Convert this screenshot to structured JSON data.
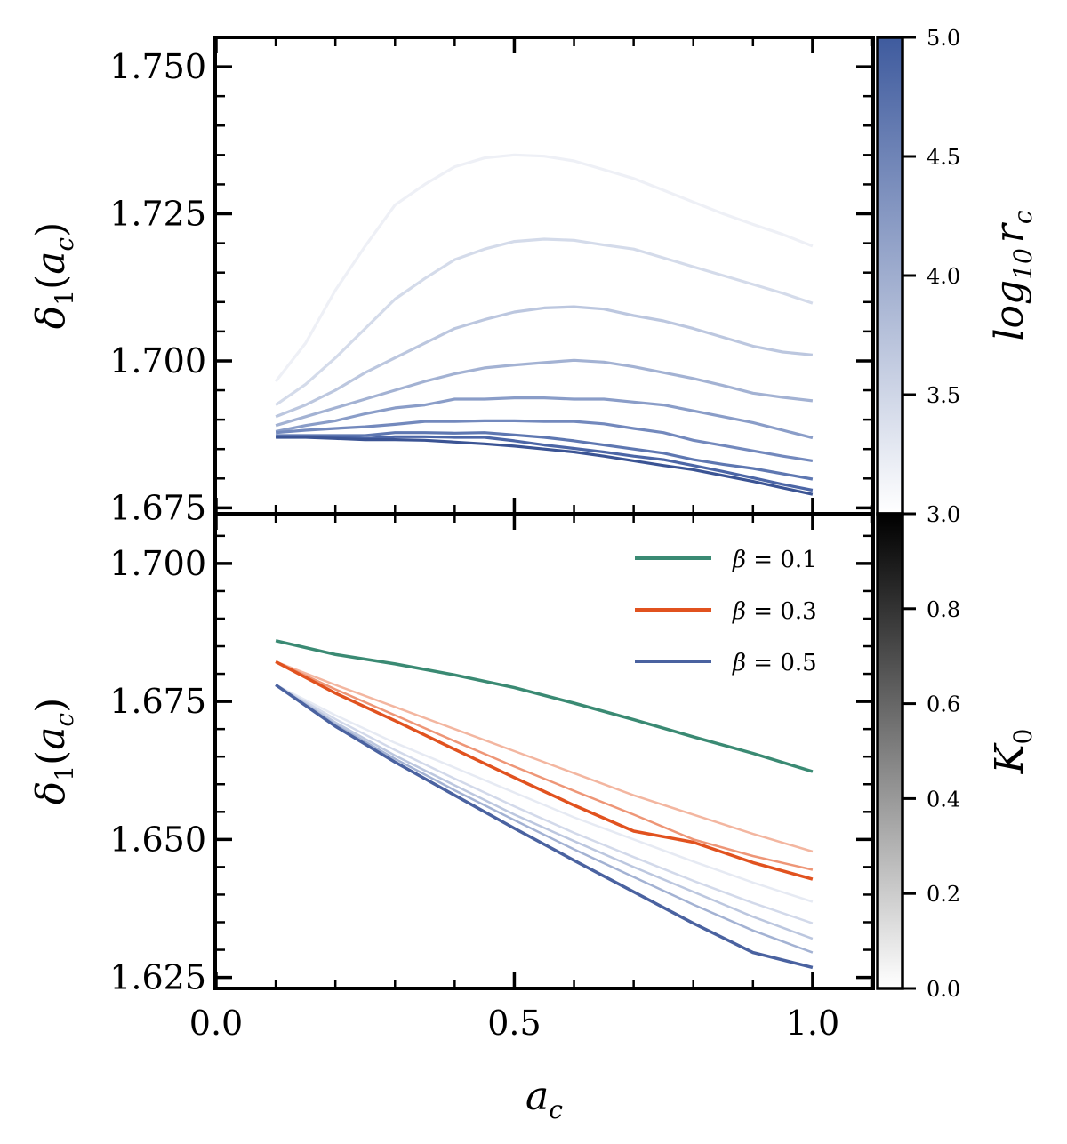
{
  "chart_data": [
    {
      "type": "line",
      "panel": "top",
      "xlabel": "",
      "ylabel": "δ1(ac)",
      "xlim": [
        0.0,
        1.1
      ],
      "ylim": [
        1.674,
        1.755
      ],
      "yticks": [
        "1.675",
        "1.700",
        "1.725",
        "1.750"
      ],
      "x": [
        0.1,
        0.15,
        0.2,
        0.25,
        0.3,
        0.35,
        0.4,
        0.45,
        0.5,
        0.55,
        0.6,
        0.65,
        0.7,
        0.75,
        0.8,
        0.85,
        0.9,
        0.95,
        1.0
      ],
      "series": [
        {
          "name": "log10 rc = 3.0",
          "color": "#eef0f6",
          "values": [
            1.6965,
            1.703,
            1.712,
            1.7195,
            1.7265,
            1.73,
            1.733,
            1.7345,
            1.735,
            1.7348,
            1.734,
            1.7325,
            1.731,
            1.729,
            1.727,
            1.725,
            1.7232,
            1.7215,
            1.7195
          ]
        },
        {
          "name": "log10 rc = 3.25",
          "color": "#d4dbea",
          "values": [
            1.6925,
            1.696,
            1.7005,
            1.7055,
            1.7105,
            1.714,
            1.7172,
            1.719,
            1.7203,
            1.7207,
            1.7205,
            1.7197,
            1.719,
            1.7175,
            1.716,
            1.7145,
            1.713,
            1.7115,
            1.7098
          ]
        },
        {
          "name": "log10 rc = 3.5",
          "color": "#bcc7df",
          "values": [
            1.6905,
            1.6925,
            1.695,
            1.698,
            1.7005,
            1.703,
            1.7055,
            1.707,
            1.7083,
            1.709,
            1.7092,
            1.7088,
            1.7077,
            1.7068,
            1.7055,
            1.704,
            1.7025,
            1.7015,
            1.701
          ]
        },
        {
          "name": "log10 rc = 3.75",
          "color": "#a3b2d3",
          "values": [
            1.689,
            1.6905,
            1.692,
            1.6935,
            1.695,
            1.6965,
            1.6978,
            1.6988,
            1.6993,
            1.6997,
            1.7001,
            1.6998,
            1.699,
            1.698,
            1.697,
            1.6958,
            1.6945,
            1.6938,
            1.6932
          ]
        },
        {
          "name": "log10 rc = 4.0",
          "color": "#8a9dc8",
          "values": [
            1.688,
            1.689,
            1.6898,
            1.691,
            1.692,
            1.6925,
            1.6935,
            1.6935,
            1.6937,
            1.6937,
            1.6935,
            1.6935,
            1.693,
            1.6925,
            1.6915,
            1.6905,
            1.6895,
            1.6882,
            1.6869
          ]
        },
        {
          "name": "log10 rc = 4.25",
          "color": "#7389bd",
          "values": [
            1.6878,
            1.6882,
            1.6885,
            1.6888,
            1.6892,
            1.6897,
            1.6897,
            1.6898,
            1.6898,
            1.6897,
            1.6897,
            1.6893,
            1.6885,
            1.6878,
            1.6865,
            1.6856,
            1.6847,
            1.6838,
            1.683
          ]
        },
        {
          "name": "log10 rc = 4.5",
          "color": "#5e77b1",
          "values": [
            1.6873,
            1.6873,
            1.6873,
            1.6873,
            1.6878,
            1.6878,
            1.6877,
            1.6878,
            1.6874,
            1.687,
            1.6864,
            1.6857,
            1.685,
            1.6843,
            1.6832,
            1.6824,
            1.6817,
            1.6808,
            1.6799
          ]
        },
        {
          "name": "log10 rc = 4.75",
          "color": "#4c66a6",
          "values": [
            1.6871,
            1.6871,
            1.687,
            1.6868,
            1.6871,
            1.6871,
            1.687,
            1.687,
            1.6864,
            1.6857,
            1.6851,
            1.6845,
            1.6838,
            1.6832,
            1.6822,
            1.6812,
            1.6801,
            1.679,
            1.678
          ]
        },
        {
          "name": "log10 rc = 5.0",
          "color": "#3b5494",
          "values": [
            1.687,
            1.687,
            1.6868,
            1.6866,
            1.6866,
            1.6865,
            1.6862,
            1.6859,
            1.6855,
            1.685,
            1.6845,
            1.6838,
            1.683,
            1.6822,
            1.6815,
            1.6805,
            1.6795,
            1.6784,
            1.6773
          ]
        }
      ],
      "colorbar": {
        "label": "log10 rc",
        "range": [
          3.0,
          5.0
        ],
        "ticks": [
          "3.0",
          "3.5",
          "4.0",
          "4.5",
          "5.0"
        ],
        "cmap": [
          "#ffffff",
          "#3f5b9e"
        ]
      }
    },
    {
      "type": "line",
      "panel": "bottom",
      "xlabel": "ac",
      "ylabel": "δ1(ac)",
      "xlim": [
        0.0,
        1.1
      ],
      "ylim": [
        1.623,
        1.709
      ],
      "xticks": [
        "0.0",
        "0.5",
        "1.0"
      ],
      "yticks": [
        "1.625",
        "1.650",
        "1.675",
        "1.700"
      ],
      "legend_position": "top-right",
      "x": [
        0.1,
        0.2,
        0.3,
        0.4,
        0.5,
        0.6,
        0.7,
        0.8,
        0.9,
        1.0
      ],
      "series": [
        {
          "name": "β = 0.1",
          "color": "#3a8a73",
          "values": [
            1.686,
            1.6835,
            1.6818,
            1.6798,
            1.6775,
            1.6747,
            1.6717,
            1.6686,
            1.6656,
            1.6623
          ]
        },
        {
          "name": "β = 0.3",
          "color": "#e1521f",
          "values": [
            1.6822,
            1.6765,
            1.6715,
            1.6663,
            1.6612,
            1.6562,
            1.6515,
            1.6495,
            1.6458,
            1.6428
          ]
        },
        {
          "name": "β = 0.5",
          "color": "#4a62a0",
          "values": [
            1.678,
            1.6705,
            1.664,
            1.658,
            1.652,
            1.6462,
            1.6405,
            1.6348,
            1.6295,
            1.6268
          ]
        }
      ],
      "faint_series": [
        {
          "group": "β = 0.3",
          "color": "#f3b6a0",
          "values": [
            1.6822,
            1.678,
            1.674,
            1.67,
            1.666,
            1.662,
            1.658,
            1.6545,
            1.651,
            1.6478
          ]
        },
        {
          "group": "β = 0.3",
          "color": "#ee9677",
          "values": [
            1.6822,
            1.6772,
            1.6725,
            1.6678,
            1.6632,
            1.6588,
            1.6545,
            1.65,
            1.647,
            1.6445
          ]
        },
        {
          "group": "β = 0.5",
          "color": "#e6eaf3",
          "values": [
            1.678,
            1.6725,
            1.6675,
            1.663,
            1.6585,
            1.654,
            1.65,
            1.646,
            1.6422,
            1.6387
          ]
        },
        {
          "group": "β = 0.5",
          "color": "#d2d9ea",
          "values": [
            1.678,
            1.6718,
            1.6662,
            1.661,
            1.656,
            1.6512,
            1.6468,
            1.6425,
            1.6385,
            1.6348
          ]
        },
        {
          "group": "β = 0.5",
          "color": "#bcc7df",
          "values": [
            1.678,
            1.6712,
            1.6652,
            1.6598,
            1.6545,
            1.6497,
            1.645,
            1.6405,
            1.636,
            1.632
          ]
        },
        {
          "group": "β = 0.5",
          "color": "#a3b2d3",
          "values": [
            1.678,
            1.6708,
            1.6646,
            1.6589,
            1.6535,
            1.6482,
            1.6432,
            1.6382,
            1.6335,
            1.6295
          ]
        }
      ],
      "colorbar": {
        "label": "K0",
        "range": [
          0.0,
          1.0
        ],
        "ticks": [
          "0.0",
          "0.2",
          "0.4",
          "0.6",
          "0.8"
        ],
        "cmap": [
          "#ffffff",
          "#000000"
        ]
      }
    }
  ],
  "labels": {
    "ylabel_main": "δ",
    "ylabel_sub": "1",
    "ylabel_arg": "(",
    "ylabel_a": "a",
    "ylabel_c": "c",
    "ylabel_close": ")",
    "xlabel_a": "a",
    "xlabel_c": "c",
    "cb_top_log": "log",
    "cb_top_sub": "10",
    "cb_top_r": "r",
    "cb_top_c": "c",
    "cb_bot_K": "K",
    "cb_bot_sub": "0",
    "legend_beta": "β",
    "legend_eq": " = "
  },
  "legend_values": [
    "0.1",
    "0.3",
    "0.5"
  ]
}
